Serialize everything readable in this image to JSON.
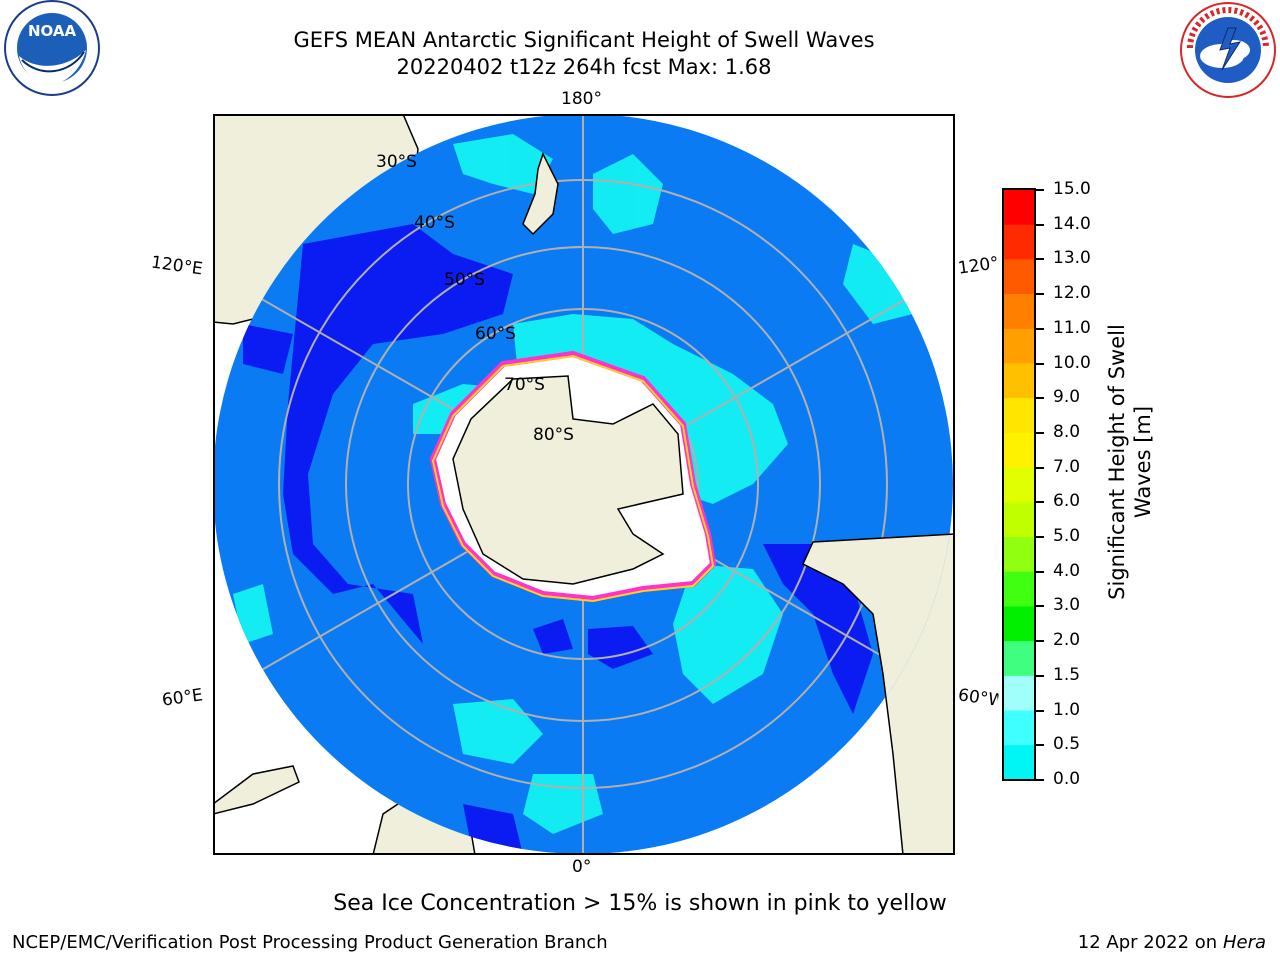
{
  "header": {
    "title_line1": "GEFS MEAN Antarctic Significant Height of Swell Waves",
    "title_line2": "20220402 t12z 264h fcst   Max: 1.68"
  },
  "logos": {
    "left": {
      "text": "NOAA",
      "ring_text": "NATIONAL OCEANIC AND ATMOSPHERIC ADMINISTRATION · U.S. DEPARTMENT OF COMMERCE"
    },
    "right": {
      "ring_text": "NATIONAL WEATHER SERVICE"
    }
  },
  "map": {
    "projection": "south-polar-stereographic",
    "colors": {
      "land": "#efefdc",
      "ocean_low": "#0a7bf2",
      "ocean_dark": "#0b1cf2",
      "ocean_cyan": "#14f2f2",
      "ice_pink": "#ff33cc",
      "ice_yellow": "#ffd21a",
      "grid": "#b0b0b0"
    },
    "longitude_labels": {
      "top": "180°",
      "bottom": "0°",
      "upper_left": "120°E",
      "lower_left": "60°E",
      "upper_right": "120°W",
      "lower_right": "60°W"
    },
    "latitude_labels": [
      "30°S",
      "40°S",
      "50°S",
      "60°S",
      "70°S",
      "80°S"
    ]
  },
  "colorbar": {
    "title_line1": "Significant Height of Swell",
    "title_line2": "Waves [m]",
    "ticks": [
      "15.0",
      "14.0",
      "13.0",
      "12.0",
      "11.0",
      "10.0",
      "9.0",
      "8.0",
      "7.0",
      "6.0",
      "5.0",
      "4.0",
      "3.0",
      "2.0",
      "1.5",
      "1.0",
      "0.5",
      "0.0"
    ],
    "colors_top_to_bottom": [
      "#ff0000",
      "#ff2a00",
      "#ff5a00",
      "#ff7f00",
      "#ffa000",
      "#ffc000",
      "#ffe600",
      "#fff200",
      "#e0ff00",
      "#c0ff00",
      "#90ff10",
      "#40ff10",
      "#00f000",
      "#40ff80",
      "#a0fff8",
      "#40ffff",
      "#00f5f5",
      "#0a7bf2",
      "#0000ff"
    ]
  },
  "footer": {
    "subtitle": "Sea Ice Concentration > 15% is shown in pink to yellow",
    "left": "NCEP/EMC/Verification Post Processing Product Generation Branch",
    "right_prefix": "12 Apr 2022 on ",
    "right_italic": "Hera"
  }
}
